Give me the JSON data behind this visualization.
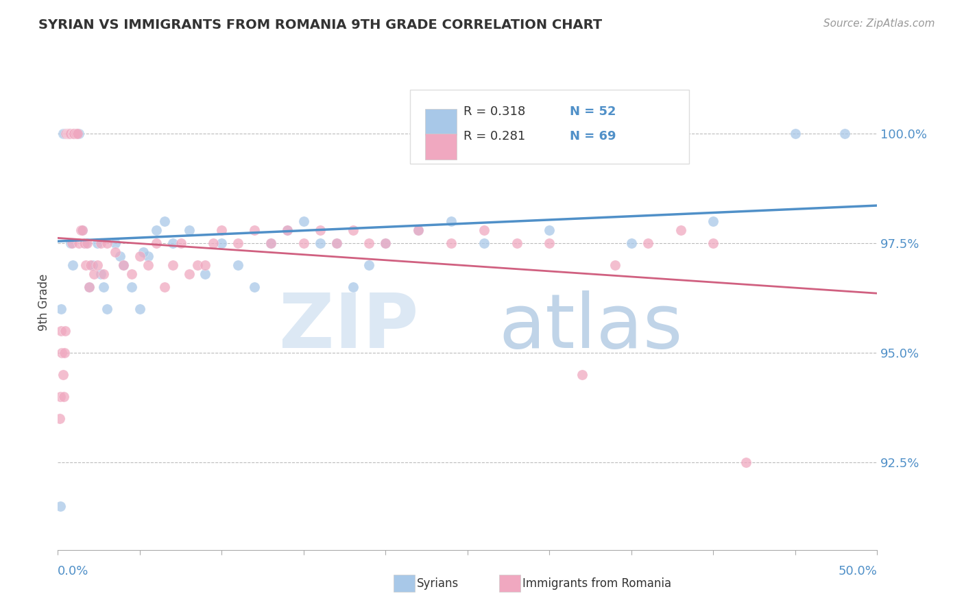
{
  "title": "SYRIAN VS IMMIGRANTS FROM ROMANIA 9TH GRADE CORRELATION CHART",
  "source": "Source: ZipAtlas.com",
  "ylabel": "9th Grade",
  "xlim": [
    0.0,
    50.0
  ],
  "ylim": [
    90.5,
    101.8
  ],
  "yticks": [
    92.5,
    95.0,
    97.5,
    100.0
  ],
  "ytick_labels": [
    "92.5%",
    "95.0%",
    "97.5%",
    "100.0%"
  ],
  "legend_r1": "R = 0.318",
  "legend_n1": "N = 52",
  "legend_r2": "R = 0.281",
  "legend_n2": "N = 69",
  "blue_color": "#A8C8E8",
  "pink_color": "#F0A8C0",
  "blue_line_color": "#5090C8",
  "pink_line_color": "#D06080",
  "syrians_x": [
    0.15,
    0.2,
    0.3,
    0.4,
    0.5,
    0.6,
    0.7,
    0.8,
    0.9,
    1.0,
    1.1,
    1.2,
    1.3,
    1.5,
    1.7,
    1.9,
    2.1,
    2.4,
    2.6,
    2.8,
    3.0,
    3.5,
    4.0,
    4.5,
    5.0,
    5.5,
    6.0,
    6.5,
    7.0,
    8.0,
    9.0,
    10.0,
    11.0,
    12.0,
    13.0,
    14.0,
    15.0,
    16.0,
    17.0,
    18.0,
    19.0,
    20.0,
    22.0,
    24.0,
    26.0,
    30.0,
    35.0,
    40.0,
    45.0,
    48.0,
    3.8,
    5.2
  ],
  "syrians_y": [
    91.5,
    96.0,
    100.0,
    100.0,
    100.0,
    100.0,
    100.0,
    97.5,
    97.0,
    100.0,
    100.0,
    100.0,
    100.0,
    97.8,
    97.5,
    96.5,
    97.0,
    97.5,
    96.8,
    96.5,
    96.0,
    97.5,
    97.0,
    96.5,
    96.0,
    97.2,
    97.8,
    98.0,
    97.5,
    97.8,
    96.8,
    97.5,
    97.0,
    96.5,
    97.5,
    97.8,
    98.0,
    97.5,
    97.5,
    96.5,
    97.0,
    97.5,
    97.8,
    98.0,
    97.5,
    97.8,
    97.5,
    98.0,
    100.0,
    100.0,
    97.2,
    97.3
  ],
  "romania_x": [
    0.1,
    0.15,
    0.2,
    0.25,
    0.3,
    0.35,
    0.4,
    0.45,
    0.5,
    0.55,
    0.6,
    0.65,
    0.7,
    0.75,
    0.8,
    0.85,
    0.9,
    0.95,
    1.0,
    1.1,
    1.2,
    1.3,
    1.4,
    1.5,
    1.6,
    1.7,
    1.8,
    1.9,
    2.0,
    2.2,
    2.4,
    2.6,
    2.8,
    3.0,
    3.5,
    4.0,
    4.5,
    5.0,
    5.5,
    6.0,
    6.5,
    7.0,
    7.5,
    8.0,
    8.5,
    9.0,
    9.5,
    10.0,
    11.0,
    12.0,
    13.0,
    14.0,
    15.0,
    16.0,
    17.0,
    18.0,
    19.0,
    20.0,
    22.0,
    24.0,
    26.0,
    28.0,
    30.0,
    32.0,
    34.0,
    36.0,
    38.0,
    40.0,
    42.0
  ],
  "romania_y": [
    93.5,
    94.0,
    95.5,
    95.0,
    94.5,
    94.0,
    95.0,
    95.5,
    100.0,
    100.0,
    100.0,
    100.0,
    100.0,
    100.0,
    100.0,
    97.5,
    100.0,
    100.0,
    100.0,
    100.0,
    100.0,
    97.5,
    97.8,
    97.8,
    97.5,
    97.0,
    97.5,
    96.5,
    97.0,
    96.8,
    97.0,
    97.5,
    96.8,
    97.5,
    97.3,
    97.0,
    96.8,
    97.2,
    97.0,
    97.5,
    96.5,
    97.0,
    97.5,
    96.8,
    97.0,
    97.0,
    97.5,
    97.8,
    97.5,
    97.8,
    97.5,
    97.8,
    97.5,
    97.8,
    97.5,
    97.8,
    97.5,
    97.5,
    97.8,
    97.5,
    97.8,
    97.5,
    97.5,
    94.5,
    97.0,
    97.5,
    97.8,
    97.5,
    92.5
  ]
}
